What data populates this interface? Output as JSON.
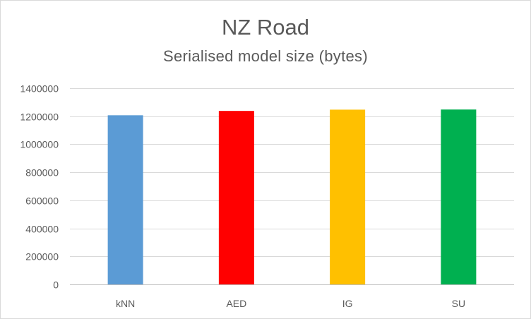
{
  "chart_data": {
    "type": "bar",
    "title": "NZ Road",
    "subtitle": "Serialised model size (bytes)",
    "xlabel": "",
    "ylabel": "",
    "categories": [
      "kNN",
      "AED",
      "IG",
      "SU"
    ],
    "values": [
      1207000,
      1238000,
      1247000,
      1248000
    ],
    "colors": [
      "#5b9bd5",
      "#ff0000",
      "#ffc000",
      "#00b050"
    ],
    "ylim": [
      0,
      1400000
    ],
    "yticks": [
      0,
      200000,
      400000,
      600000,
      800000,
      1000000,
      1200000,
      1400000
    ],
    "ytick_labels": [
      "0",
      "200000",
      "400000",
      "600000",
      "800000",
      "1000000",
      "1200000",
      "1400000"
    ],
    "grid": true,
    "legend": "none"
  }
}
